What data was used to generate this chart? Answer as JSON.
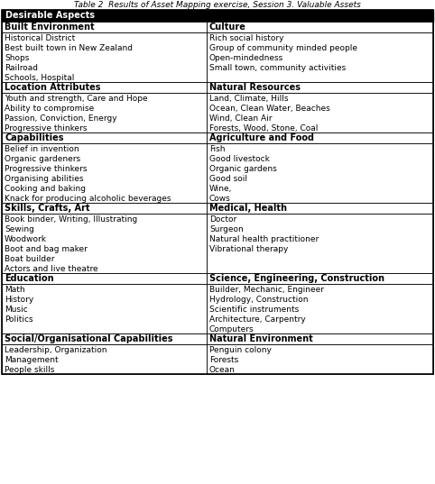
{
  "title": "Table 2  Results of Asset Mapping exercise, Session 3. Valuable Assets",
  "header": "Desirable Aspects",
  "sections": [
    {
      "left_header": "Built Environment",
      "right_header": "Culture",
      "left_items": [
        "Historical District",
        "Best built town in New Zealand",
        "Shops",
        "Railroad",
        "Schools, Hospital"
      ],
      "right_items": [
        "Rich social history",
        "Group of community minded people",
        "Open-mindedness",
        "Small town, community activities",
        ""
      ]
    },
    {
      "left_header": "Location Attributes",
      "right_header": "Natural Resources",
      "left_items": [
        "Youth and strength, Care and Hope",
        "Ability to compromise",
        "Passion, Conviction, Energy",
        "Progressive thinkers"
      ],
      "right_items": [
        "Land, Climate, Hills",
        "Ocean, Clean Water, Beaches",
        "Wind, Clean Air",
        "Forests, Wood, Stone, Coal"
      ]
    },
    {
      "left_header": "Capabilities",
      "right_header": "Agriculture and Food",
      "left_items": [
        "Belief in invention",
        "Organic gardeners",
        "Progressive thinkers",
        "Organising abilities",
        "Cooking and baking",
        "Knack for producing alcoholic beverages"
      ],
      "right_items": [
        "Fish",
        "Good livestock",
        "Organic gardens",
        "Good soil",
        "Wine,",
        "Cows"
      ]
    },
    {
      "left_header": "Skills, Crafts, Art",
      "right_header": "Medical, Health",
      "left_items": [
        "Book binder, Writing, Illustrating",
        "Sewing",
        "Woodwork",
        "Boot and bag maker",
        "Boat builder",
        "Actors and live theatre"
      ],
      "right_items": [
        "Doctor",
        "Surgeon",
        "Natural health practitioner",
        "Vibrational therapy",
        "",
        ""
      ]
    },
    {
      "left_header": "Education",
      "right_header": "Science, Engineering, Construction",
      "left_items": [
        "Math",
        "History",
        "Music",
        "Politics",
        ""
      ],
      "right_items": [
        "Builder, Mechanic, Engineer",
        "Hydrology, Construction",
        "Scientific instruments",
        "Architecture, Carpentry",
        "Computers"
      ]
    },
    {
      "left_header": "Social/Organisational Capabilities",
      "right_header": "Natural Environment",
      "left_items": [
        "Leadership, Organization",
        "Management",
        "People skills"
      ],
      "right_items": [
        "Penguin colony",
        "Forests",
        "Ocean"
      ]
    }
  ],
  "header_bg": "#000000",
  "header_fg": "#ffffff",
  "body_bg": "#ffffff",
  "body_fg": "#000000",
  "font_size": 6.5,
  "header_font_size": 7.0,
  "title_font_size": 6.5,
  "col_split": 0.475,
  "fig_width": 4.82,
  "fig_height": 5.37,
  "dpi": 100
}
